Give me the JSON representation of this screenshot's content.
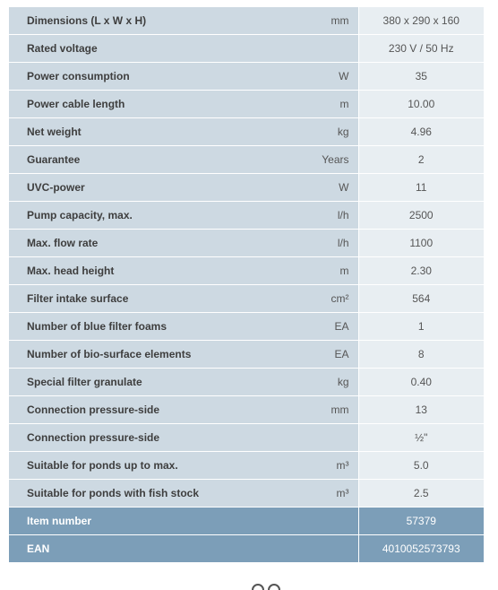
{
  "specs": [
    {
      "label": "Dimensions (L x W x H)",
      "unit": "mm",
      "value": "380 x 290 x 160"
    },
    {
      "label": "Rated voltage",
      "unit": "",
      "value": "230 V / 50 Hz"
    },
    {
      "label": "Power consumption",
      "unit": "W",
      "value": "35"
    },
    {
      "label": "Power cable length",
      "unit": "m",
      "value": "10.00"
    },
    {
      "label": "Net weight",
      "unit": "kg",
      "value": "4.96"
    },
    {
      "label": "Guarantee",
      "unit": "Years",
      "value": "2"
    },
    {
      "label": "UVC-power",
      "unit": "W",
      "value": "11"
    },
    {
      "label": "Pump capacity, max.",
      "unit": "l/h",
      "value": "2500"
    },
    {
      "label": "Max. flow rate",
      "unit": "l/h",
      "value": "1100"
    },
    {
      "label": "Max. head height",
      "unit": "m",
      "value": "2.30"
    },
    {
      "label": "Filter intake surface",
      "unit": "cm²",
      "value": "564"
    },
    {
      "label": "Number of blue filter foams",
      "unit": "EA",
      "value": "1"
    },
    {
      "label": "Number of bio-surface elements",
      "unit": "EA",
      "value": "8"
    },
    {
      "label": "Special filter granulate",
      "unit": "kg",
      "value": "0.40"
    },
    {
      "label": "Connection pressure-side",
      "unit": "mm",
      "value": "13"
    },
    {
      "label": "Connection pressure-side",
      "unit": "",
      "value": "½\""
    },
    {
      "label": "Suitable for ponds up to max.",
      "unit": "m³",
      "value": "5.0"
    },
    {
      "label": "Suitable for ponds with fish stock",
      "unit": "m³",
      "value": "2.5"
    }
  ],
  "identifiers": [
    {
      "label": "Item number",
      "value": "57379"
    },
    {
      "label": "EAN",
      "value": "4010052573793"
    }
  ],
  "colors": {
    "label_cell_bg": "#cdd9e2",
    "value_cell_bg": "#e8eef2",
    "highlight_row_bg": "#7c9eb8",
    "text": "#3c3c3c"
  }
}
